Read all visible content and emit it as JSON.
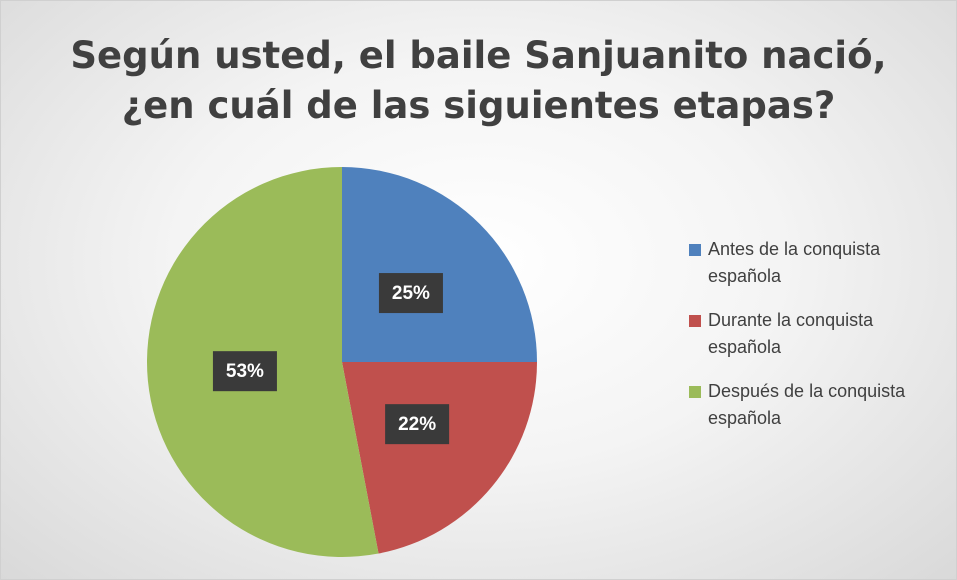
{
  "chart_data": {
    "type": "pie",
    "title": "Según usted, el baile Sanjuanito nació,\n¿en cuál de las siguientes etapas?",
    "categories": [
      "Antes de la conquista española",
      "Durante la conquista española",
      "Después de la conquista española"
    ],
    "values": [
      25,
      22,
      53
    ],
    "value_labels": [
      "25%",
      "22%",
      "53%"
    ],
    "colors": [
      "#4f81bd",
      "#c0504d",
      "#9bbb59"
    ],
    "legend": "right"
  }
}
